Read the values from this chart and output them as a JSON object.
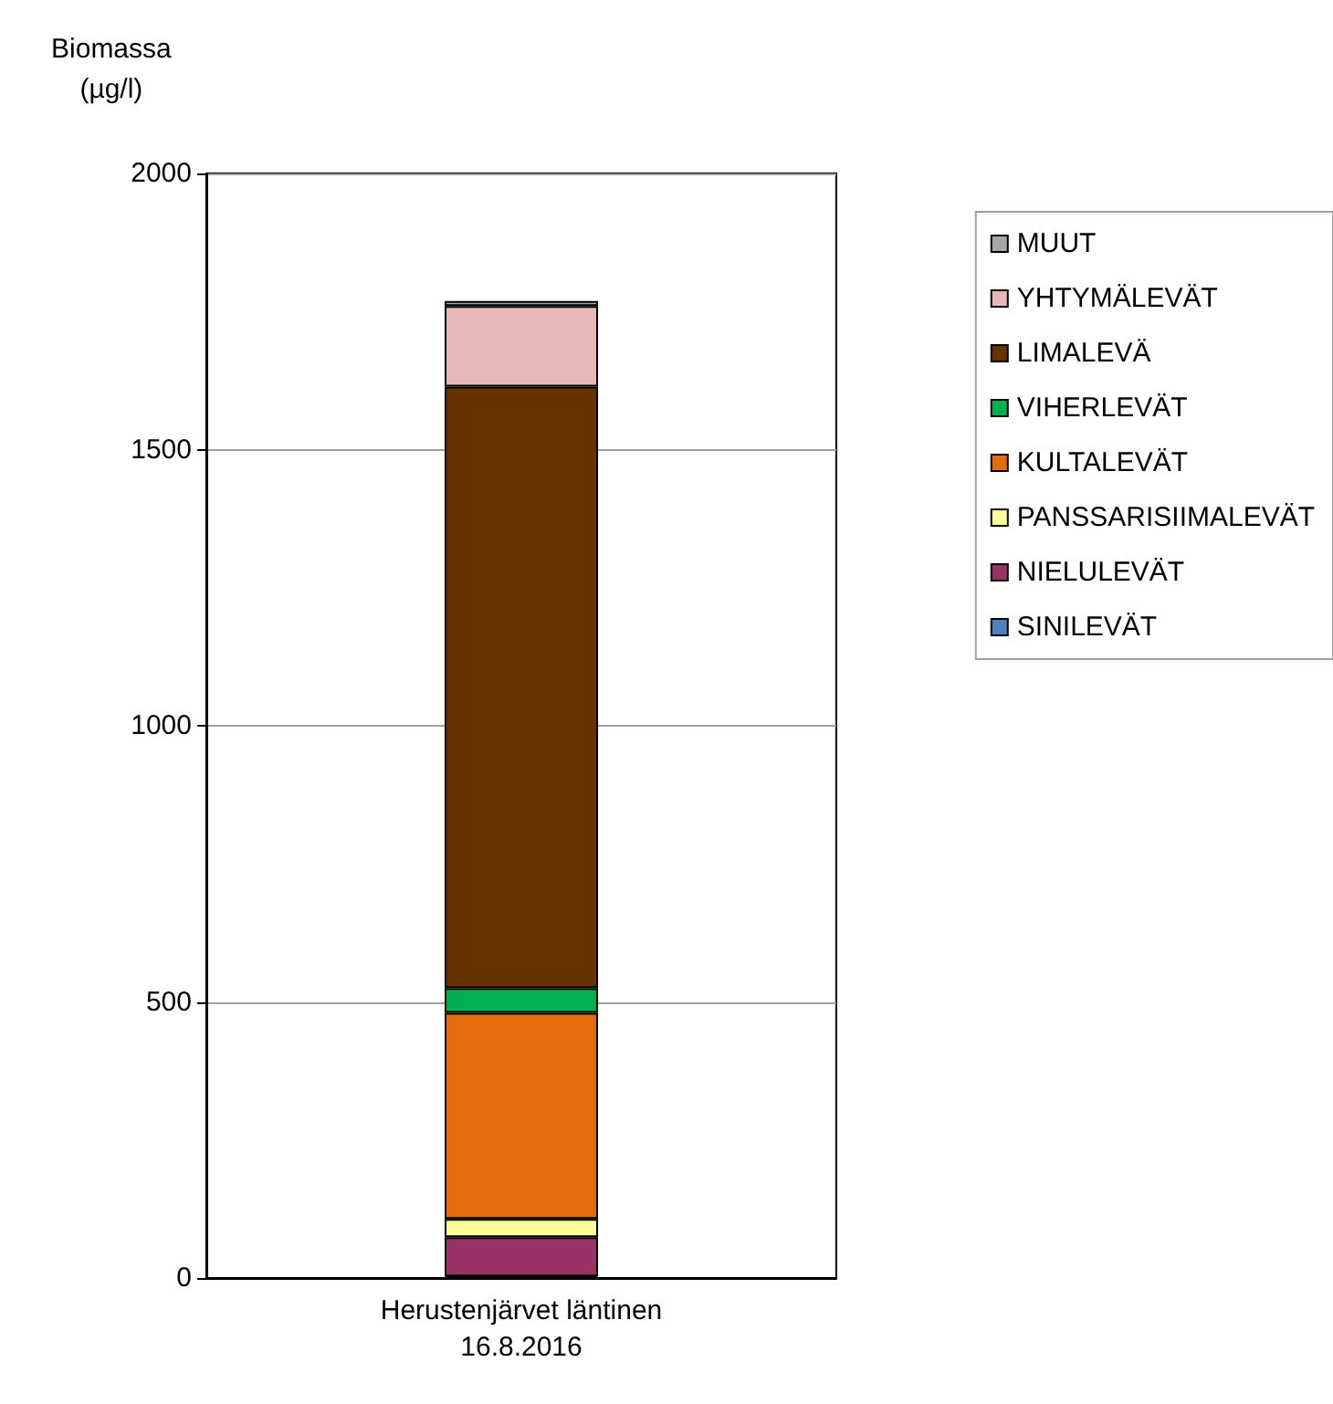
{
  "chart_data": {
    "type": "bar",
    "stacked": true,
    "ylabel": "Biomassa\n(µg/l)",
    "categories": [
      "Herustenjärvet läntinen\n16.8.2016"
    ],
    "series": [
      {
        "name": "SINILEVÄT",
        "color": "#4f81bd",
        "values": [
          3
        ]
      },
      {
        "name": "NIELULEVÄT",
        "color": "#993366",
        "values": [
          71
        ]
      },
      {
        "name": "PANSSARISIIMALEVÄT",
        "color": "#ffff99",
        "values": [
          33
        ]
      },
      {
        "name": "KULTALEVÄT",
        "color": "#e46c0a",
        "values": [
          373
        ]
      },
      {
        "name": "VIHERLEVÄT",
        "color": "#00b050",
        "values": [
          45
        ]
      },
      {
        "name": "LIMALEVÄ",
        "color": "#663300",
        "values": [
          1089
        ]
      },
      {
        "name": "YHTYMÄLEVÄT",
        "color": "#e6b9b8",
        "values": [
          146
        ]
      },
      {
        "name": "MUUT",
        "color": "#a6a6a6",
        "values": [
          9
        ]
      }
    ],
    "ylim": [
      0,
      2000
    ],
    "yticks": [
      0,
      500,
      1000,
      1500,
      2000
    ],
    "grid": "y",
    "legend": "right"
  }
}
